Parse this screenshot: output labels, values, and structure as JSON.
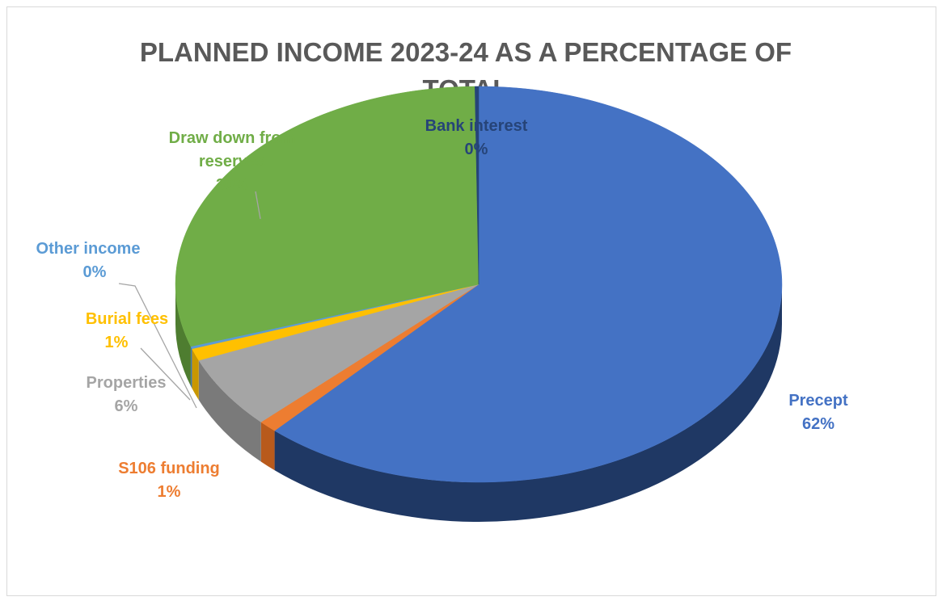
{
  "chart_data": {
    "type": "pie",
    "title_lines": [
      "PLANNED INCOME 2023-24 AS A PERCENTAGE OF",
      "TOTAL"
    ],
    "slices": [
      {
        "name": "Precept",
        "value": 62,
        "label": "62%",
        "color": "#4472c4",
        "side": "#1f3864"
      },
      {
        "name": "S106 funding",
        "value": 1,
        "label": "1%",
        "color": "#ed7d31",
        "side": "#b85a1c"
      },
      {
        "name": "Properties",
        "value": 6,
        "label": "6%",
        "color": "#a5a5a5",
        "side": "#7a7a7a"
      },
      {
        "name": "Burial fees",
        "value": 1,
        "label": "1%",
        "color": "#ffc000",
        "side": "#c99700"
      },
      {
        "name": "Other income",
        "value": 0.2,
        "label": "0%",
        "color": "#5b9bd5",
        "side": "#3f75a8"
      },
      {
        "name": "Draw down from reserves",
        "value": 30,
        "label": "30%",
        "color": "#70ad47",
        "side": "#4e7d30"
      },
      {
        "name": "Bank interest",
        "value": 0.2,
        "label": "0%",
        "color": "#264478",
        "side": "#172a4a"
      }
    ],
    "legend": "none",
    "label_colors": {
      "Precept": "#4472c4",
      "S106 funding": "#ed7d31",
      "Properties": "#a5a5a5",
      "Burial fees": "#ffc000",
      "Other income": "#5b9bd5",
      "Draw down from reserves": "#70ad47",
      "Bank interest": "#264478"
    }
  }
}
